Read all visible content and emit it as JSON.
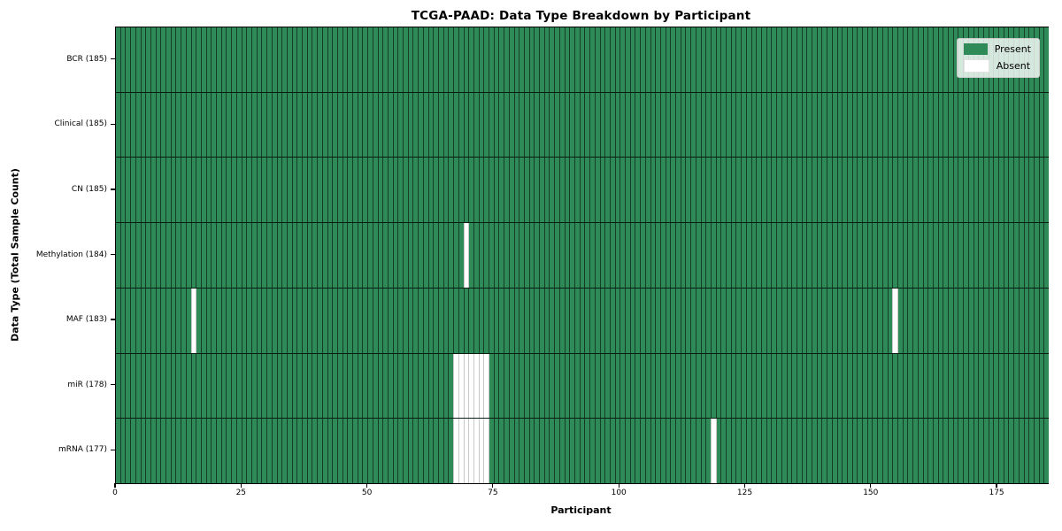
{
  "chart_data": {
    "type": "heatmap",
    "title": "TCGA-PAAD: Data Type Breakdown by Participant",
    "xlabel": "Participant",
    "ylabel": "Data Type (Total Sample Count)",
    "n_participants": 185,
    "x_axis": {
      "min": 0,
      "max": 185,
      "ticks": [
        0,
        25,
        50,
        75,
        100,
        125,
        150,
        175
      ]
    },
    "rows": [
      {
        "label": "BCR (185)",
        "data_type": "BCR",
        "total": 185,
        "absent_participants": []
      },
      {
        "label": "Clinical (185)",
        "data_type": "Clinical",
        "total": 185,
        "absent_participants": []
      },
      {
        "label": "CN (185)",
        "data_type": "CN",
        "total": 185,
        "absent_participants": []
      },
      {
        "label": "Methylation (184)",
        "data_type": "Methylation",
        "total": 184,
        "absent_participants": [
          69
        ]
      },
      {
        "label": "MAF (183)",
        "data_type": "MAF",
        "total": 183,
        "absent_participants": [
          15,
          154
        ]
      },
      {
        "label": "miR (178)",
        "data_type": "miR",
        "total": 178,
        "absent_participants": [
          67,
          68,
          69,
          70,
          71,
          72,
          73
        ]
      },
      {
        "label": "mRNA (177)",
        "data_type": "mRNA",
        "total": 177,
        "absent_participants": [
          67,
          68,
          69,
          70,
          71,
          72,
          73,
          118
        ]
      }
    ],
    "legend": [
      {
        "label": "Present",
        "color": "#2e8b57"
      },
      {
        "label": "Absent",
        "color": "#ffffff"
      }
    ],
    "colors": {
      "present": "#2e8b57",
      "absent": "#ffffff",
      "bar_edge": "rgba(0,0,0,0.55)",
      "absent_edge": "#c9c9c9",
      "row_separator": "rgba(0,0,0,0.8)",
      "plot_border": "#000000"
    },
    "grid": false,
    "legend_position": "upper right"
  }
}
